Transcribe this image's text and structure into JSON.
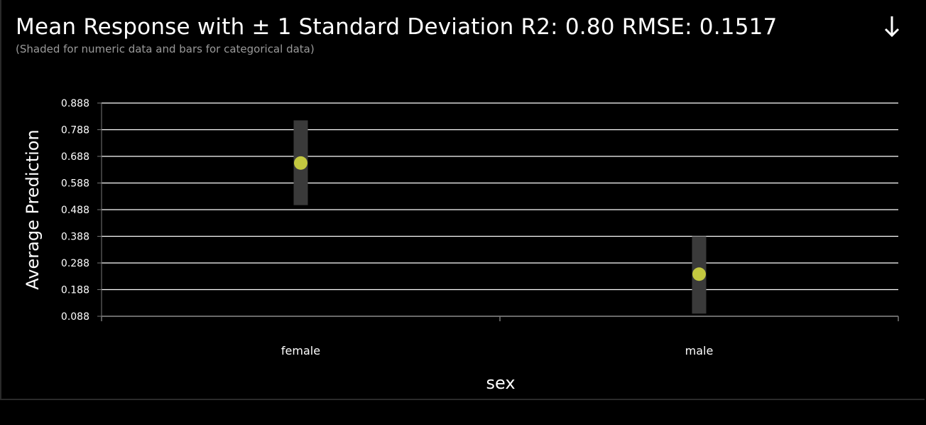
{
  "header": {
    "title": "Mean Response with ± 1 Standard Deviation R2: 0.80 RMSE: 0.1517",
    "subtitle": "(Shaded for numeric data and bars for categorical data)",
    "download_icon": "download-arrow-icon"
  },
  "colors": {
    "background": "#000000",
    "grid": "#ffffff",
    "band": "#3a3a3a",
    "point": "#c3c840"
  },
  "chart_data": {
    "type": "scatter",
    "title": "Mean Response with ± 1 Standard Deviation R2: 0.80 RMSE: 0.1517",
    "subtitle": "(Shaded for numeric data and bars for categorical data)",
    "xlabel": "sex",
    "ylabel": "Average Prediction",
    "categories": [
      "female",
      "male"
    ],
    "y_ticks": [
      "0.888",
      "0.788",
      "0.688",
      "0.588",
      "0.488",
      "0.388",
      "0.288",
      "0.188",
      "0.088"
    ],
    "ylim": [
      0.088,
      0.888
    ],
    "grid": true,
    "series": [
      {
        "values": [
          0.663,
          0.246
        ],
        "lower": [
          0.505,
          0.098
        ],
        "upper": [
          0.823,
          0.388
        ]
      }
    ]
  }
}
